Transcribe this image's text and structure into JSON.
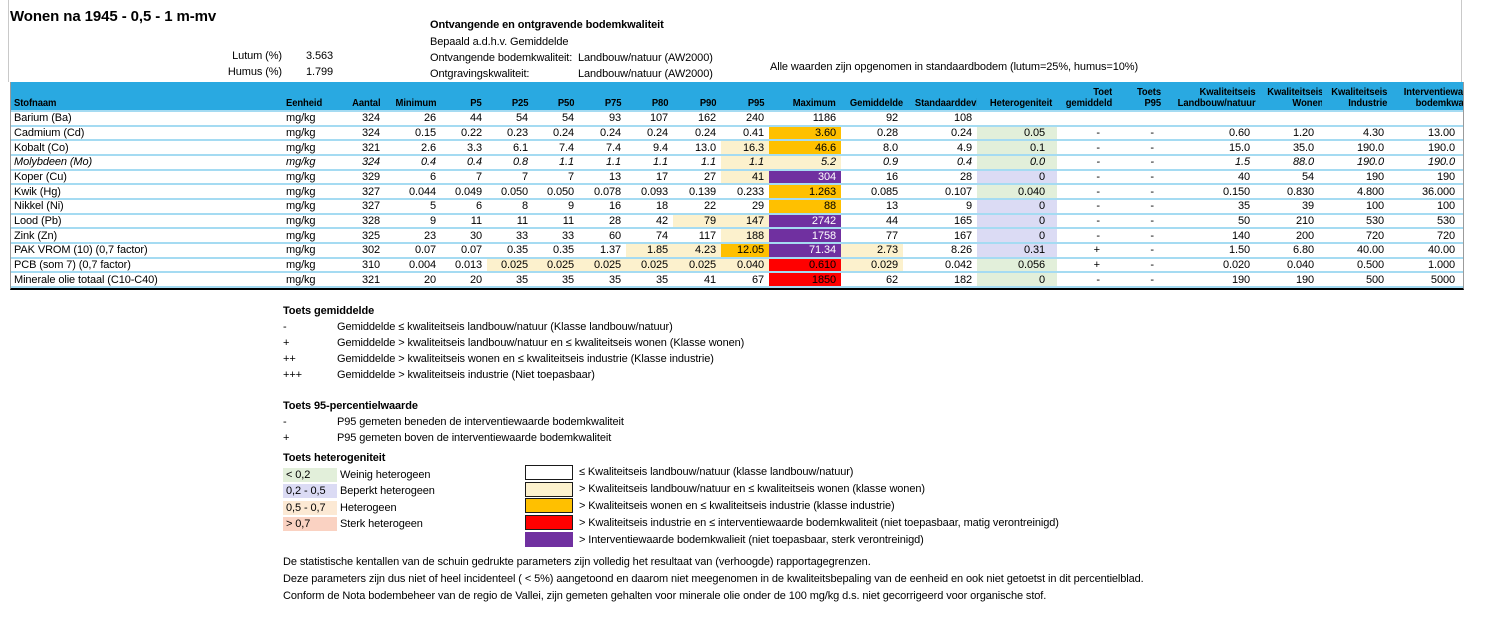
{
  "header": {
    "title": "Wonen na 1945 - 0,5 - 1 m-mv",
    "lutum_label": "Lutum (%)",
    "lutum_value": "3.563",
    "humus_label": "Humus (%)",
    "humus_value": "1.799",
    "info_title": "Ontvangende en ontgravende bodemkwaliteit",
    "info_method": "Bepaald a.d.h.v. Gemiddelde",
    "receiving_label": "Ontvangende bodemkwaliteit:",
    "receiving_value": "Landbouw/natuur (AW2000)",
    "excavation_label": "Ontgravingskwaliteit:",
    "excavation_value": "Landbouw/natuur (AW2000)",
    "standard_note": "Alle waarden zijn opgenomen in standaardbodem (lutum=25%, humus=10%)"
  },
  "table": {
    "columns": [
      {
        "key": "stofnaam",
        "label": "Stofnaam"
      },
      {
        "key": "eenheid",
        "label": "Eenheid"
      },
      {
        "key": "aantal",
        "label": "Aantal"
      },
      {
        "key": "minimum",
        "label": "Minimum"
      },
      {
        "key": "p5",
        "label": "P5"
      },
      {
        "key": "p25",
        "label": "P25"
      },
      {
        "key": "p50",
        "label": "P50"
      },
      {
        "key": "p75",
        "label": "P75"
      },
      {
        "key": "p80",
        "label": "P80"
      },
      {
        "key": "p90",
        "label": "P90"
      },
      {
        "key": "p95",
        "label": "P95"
      },
      {
        "key": "maximum",
        "label": "Maximum"
      },
      {
        "key": "gemiddelde",
        "label": "Gemiddelde"
      },
      {
        "key": "standaarddeviatie",
        "label": "Standaarddeviatie"
      },
      {
        "key": "heterogeniteit",
        "label": "Heterogeniteit"
      },
      {
        "key": "toets_gemiddelde",
        "label": "Toets\ngemiddelde"
      },
      {
        "key": "toets_p95",
        "label": "Toets P95"
      },
      {
        "key": "kw_landbouw",
        "label": "Kwaliteitseis\nLandbouw/natuur"
      },
      {
        "key": "kw_wonen",
        "label": "Kwaliteitseis\nWonen"
      },
      {
        "key": "kw_industrie",
        "label": "Kwaliteitseis\nIndustrie"
      },
      {
        "key": "interventiewaarde",
        "label": "Interventiewaarde\nbodemkwaliteit"
      }
    ],
    "rows": [
      {
        "italic": false,
        "cells": [
          "Barium (Ba)",
          "mg/kg",
          "324",
          "26",
          "44",
          "54",
          "54",
          "93",
          "107",
          "162",
          "240",
          "1186",
          "92",
          "108",
          "",
          "",
          "",
          "",
          "",
          "",
          ""
        ],
        "styles": {}
      },
      {
        "italic": false,
        "cells": [
          "Cadmium (Cd)",
          "mg/kg",
          "324",
          "0.15",
          "0.22",
          "0.23",
          "0.24",
          "0.24",
          "0.24",
          "0.24",
          "0.41",
          "3.60",
          "0.28",
          "0.24",
          "0.05",
          "-",
          "-",
          "0.60",
          "1.20",
          "4.30",
          "13.00"
        ],
        "styles": {
          "11": "orange",
          "14": "green"
        }
      },
      {
        "italic": false,
        "cells": [
          "Kobalt (Co)",
          "mg/kg",
          "321",
          "2.6",
          "3.3",
          "6.1",
          "7.4",
          "7.4",
          "9.4",
          "13.0",
          "16.3",
          "46.6",
          "8.0",
          "4.9",
          "0.1",
          "-",
          "-",
          "15.0",
          "35.0",
          "190.0",
          "190.0"
        ],
        "styles": {
          "10": "cream",
          "11": "orange",
          "14": "green"
        }
      },
      {
        "italic": true,
        "cells": [
          "Molybdeen (Mo)",
          "mg/kg",
          "324",
          "0.4",
          "0.4",
          "0.8",
          "1.1",
          "1.1",
          "1.1",
          "1.1",
          "1.1",
          "5.2",
          "0.9",
          "0.4",
          "0.0",
          "-",
          "-",
          "1.5",
          "88.0",
          "190.0",
          "190.0"
        ],
        "styles": {
          "10": "cream",
          "11": "cream",
          "14": "green"
        }
      },
      {
        "italic": false,
        "cells": [
          "Koper (Cu)",
          "mg/kg",
          "329",
          "6",
          "7",
          "7",
          "7",
          "13",
          "17",
          "27",
          "41",
          "304",
          "16",
          "28",
          "0",
          "-",
          "-",
          "40",
          "54",
          "190",
          "190"
        ],
        "styles": {
          "10": "cream",
          "11": "purple",
          "14": "lavender"
        }
      },
      {
        "italic": false,
        "cells": [
          "Kwik (Hg)",
          "mg/kg",
          "327",
          "0.044",
          "0.049",
          "0.050",
          "0.050",
          "0.078",
          "0.093",
          "0.139",
          "0.233",
          "1.263",
          "0.085",
          "0.107",
          "0.040",
          "-",
          "-",
          "0.150",
          "0.830",
          "4.800",
          "36.000"
        ],
        "styles": {
          "11": "orange",
          "14": "green"
        }
      },
      {
        "italic": false,
        "cells": [
          "Nikkel (Ni)",
          "mg/kg",
          "327",
          "5",
          "6",
          "8",
          "9",
          "16",
          "18",
          "22",
          "29",
          "88",
          "13",
          "9",
          "0",
          "-",
          "-",
          "35",
          "39",
          "100",
          "100"
        ],
        "styles": {
          "11": "orange",
          "14": "lavender"
        }
      },
      {
        "italic": false,
        "cells": [
          "Lood (Pb)",
          "mg/kg",
          "328",
          "9",
          "11",
          "11",
          "11",
          "28",
          "42",
          "79",
          "147",
          "2742",
          "44",
          "165",
          "0",
          "-",
          "-",
          "50",
          "210",
          "530",
          "530"
        ],
        "styles": {
          "9": "cream",
          "10": "cream",
          "11": "purple",
          "14": "lavender"
        }
      },
      {
        "italic": false,
        "cells": [
          "Zink (Zn)",
          "mg/kg",
          "325",
          "23",
          "30",
          "33",
          "33",
          "60",
          "74",
          "117",
          "188",
          "1758",
          "77",
          "167",
          "0",
          "-",
          "-",
          "140",
          "200",
          "720",
          "720"
        ],
        "styles": {
          "10": "cream",
          "11": "purple",
          "14": "lavender"
        }
      },
      {
        "italic": false,
        "cells": [
          "PAK VROM (10) (0,7 factor)",
          "mg/kg",
          "302",
          "0.07",
          "0.07",
          "0.35",
          "0.35",
          "1.37",
          "1.85",
          "4.23",
          "12.05",
          "71.34",
          "2.73",
          "8.26",
          "0.31",
          "+",
          "-",
          "1.50",
          "6.80",
          "40.00",
          "40.00"
        ],
        "styles": {
          "8": "cream",
          "9": "cream",
          "10": "orange",
          "11": "purple",
          "12": "cream",
          "14": "lavender"
        }
      },
      {
        "italic": false,
        "cells": [
          "PCB (som 7) (0,7 factor)",
          "mg/kg",
          "310",
          "0.004",
          "0.013",
          "0.025",
          "0.025",
          "0.025",
          "0.025",
          "0.025",
          "0.040",
          "0.610",
          "0.029",
          "0.042",
          "0.056",
          "+",
          "-",
          "0.020",
          "0.040",
          "0.500",
          "1.000"
        ],
        "styles": {
          "5": "cream",
          "6": "cream",
          "7": "cream",
          "8": "cream",
          "9": "cream",
          "10": "cream",
          "11": "red",
          "12": "cream",
          "14": "green"
        }
      },
      {
        "italic": false,
        "cells": [
          "Minerale olie totaal (C10-C40)",
          "mg/kg",
          "321",
          "20",
          "20",
          "35",
          "35",
          "35",
          "35",
          "41",
          "67",
          "1850",
          "62",
          "182",
          "0",
          "-",
          "-",
          "190",
          "190",
          "500",
          "5000"
        ],
        "styles": {
          "11": "red",
          "14": "green"
        }
      }
    ]
  },
  "legend_toets_gemiddelde": {
    "title": "Toets gemiddelde",
    "items": [
      {
        "symbol": "-",
        "text": "Gemiddelde ≤ kwaliteitseis landbouw/natuur (Klasse landbouw/natuur)"
      },
      {
        "symbol": "+",
        "text": "Gemiddelde > kwaliteitseis landbouw/natuur en ≤ kwaliteitseis wonen (Klasse wonen)"
      },
      {
        "symbol": "++",
        "text": "Gemiddelde > kwaliteitseis wonen en ≤ kwaliteitseis industrie (Klasse industrie)"
      },
      {
        "symbol": "+++",
        "text": "Gemiddelde > kwaliteitseis industrie (Niet toepasbaar)"
      }
    ]
  },
  "legend_toets_p95": {
    "title": "Toets 95-percentielwaarde",
    "items": [
      {
        "symbol": "-",
        "text": "P95 gemeten beneden de interventiewaarde bodemkwaliteit"
      },
      {
        "symbol": "+",
        "text": "P95 gemeten boven de interventiewaarde bodemkwaliteit"
      }
    ]
  },
  "legend_heterogeniteit": {
    "title": "Toets heterogeniteit",
    "items": [
      {
        "range": "< 0,2",
        "class": "green",
        "label": "Weinig heterogeen"
      },
      {
        "range": "0,2 - 0,5",
        "class": "lavender",
        "label": "Beperkt heterogeen"
      },
      {
        "range": "0,5 - 0,7",
        "class": "peach",
        "label": "Heterogeen"
      },
      {
        "range": "> 0,7",
        "class": "salmon",
        "label": "Sterk heterogeen"
      }
    ]
  },
  "legend_colors": {
    "items": [
      {
        "class": "white",
        "label": "≤ Kwaliteitseis landbouw/natuur (klasse landbouw/natuur)"
      },
      {
        "class": "cream",
        "label": "> Kwaliteitseis landbouw/natuur en ≤ kwaliteitseis wonen (klasse wonen)"
      },
      {
        "class": "orange",
        "label": "> Kwaliteitseis wonen en ≤ kwaliteitseis industrie (klasse industrie)"
      },
      {
        "class": "red",
        "label": "> Kwaliteitseis industrie en ≤ interventiewaarde bodemkwaliteit (niet toepasbaar, matig verontreinigd)"
      },
      {
        "class": "purple",
        "label": "> Interventiewaarde bodemkwalieit (niet toepasbaar, sterk verontreinigd)"
      }
    ]
  },
  "footnotes": [
    "De statistische kentallen van de schuin gedrukte parameters zijn volledig het resultaat van (verhoogde) rapportagegrenzen.",
    "Deze parameters zijn dus niet of heel incidenteel ( < 5%) aangetoond en daarom niet meegenomen in de kwaliteitsbepaling van de eenheid en ook niet getoetst in dit percentielblad.",
    "Conform de Nota bodembeheer van de regio de Vallei, zijn gemeten gehalten voor minerale olie onder de 100 mg/kg d.s. niet gecorrigeerd voor organische stof."
  ],
  "colors": {
    "header_fill": "#29A9E1",
    "row_line": "#A5DBF2",
    "cream": "#FCF1CD",
    "orange": "#FFC000",
    "red": "#FF0000",
    "purple": "#7030A0",
    "green": "#E2EFDA",
    "lavender": "#DBDBF4",
    "peach": "#FCE9D4",
    "salmon": "#FAD2C2"
  }
}
